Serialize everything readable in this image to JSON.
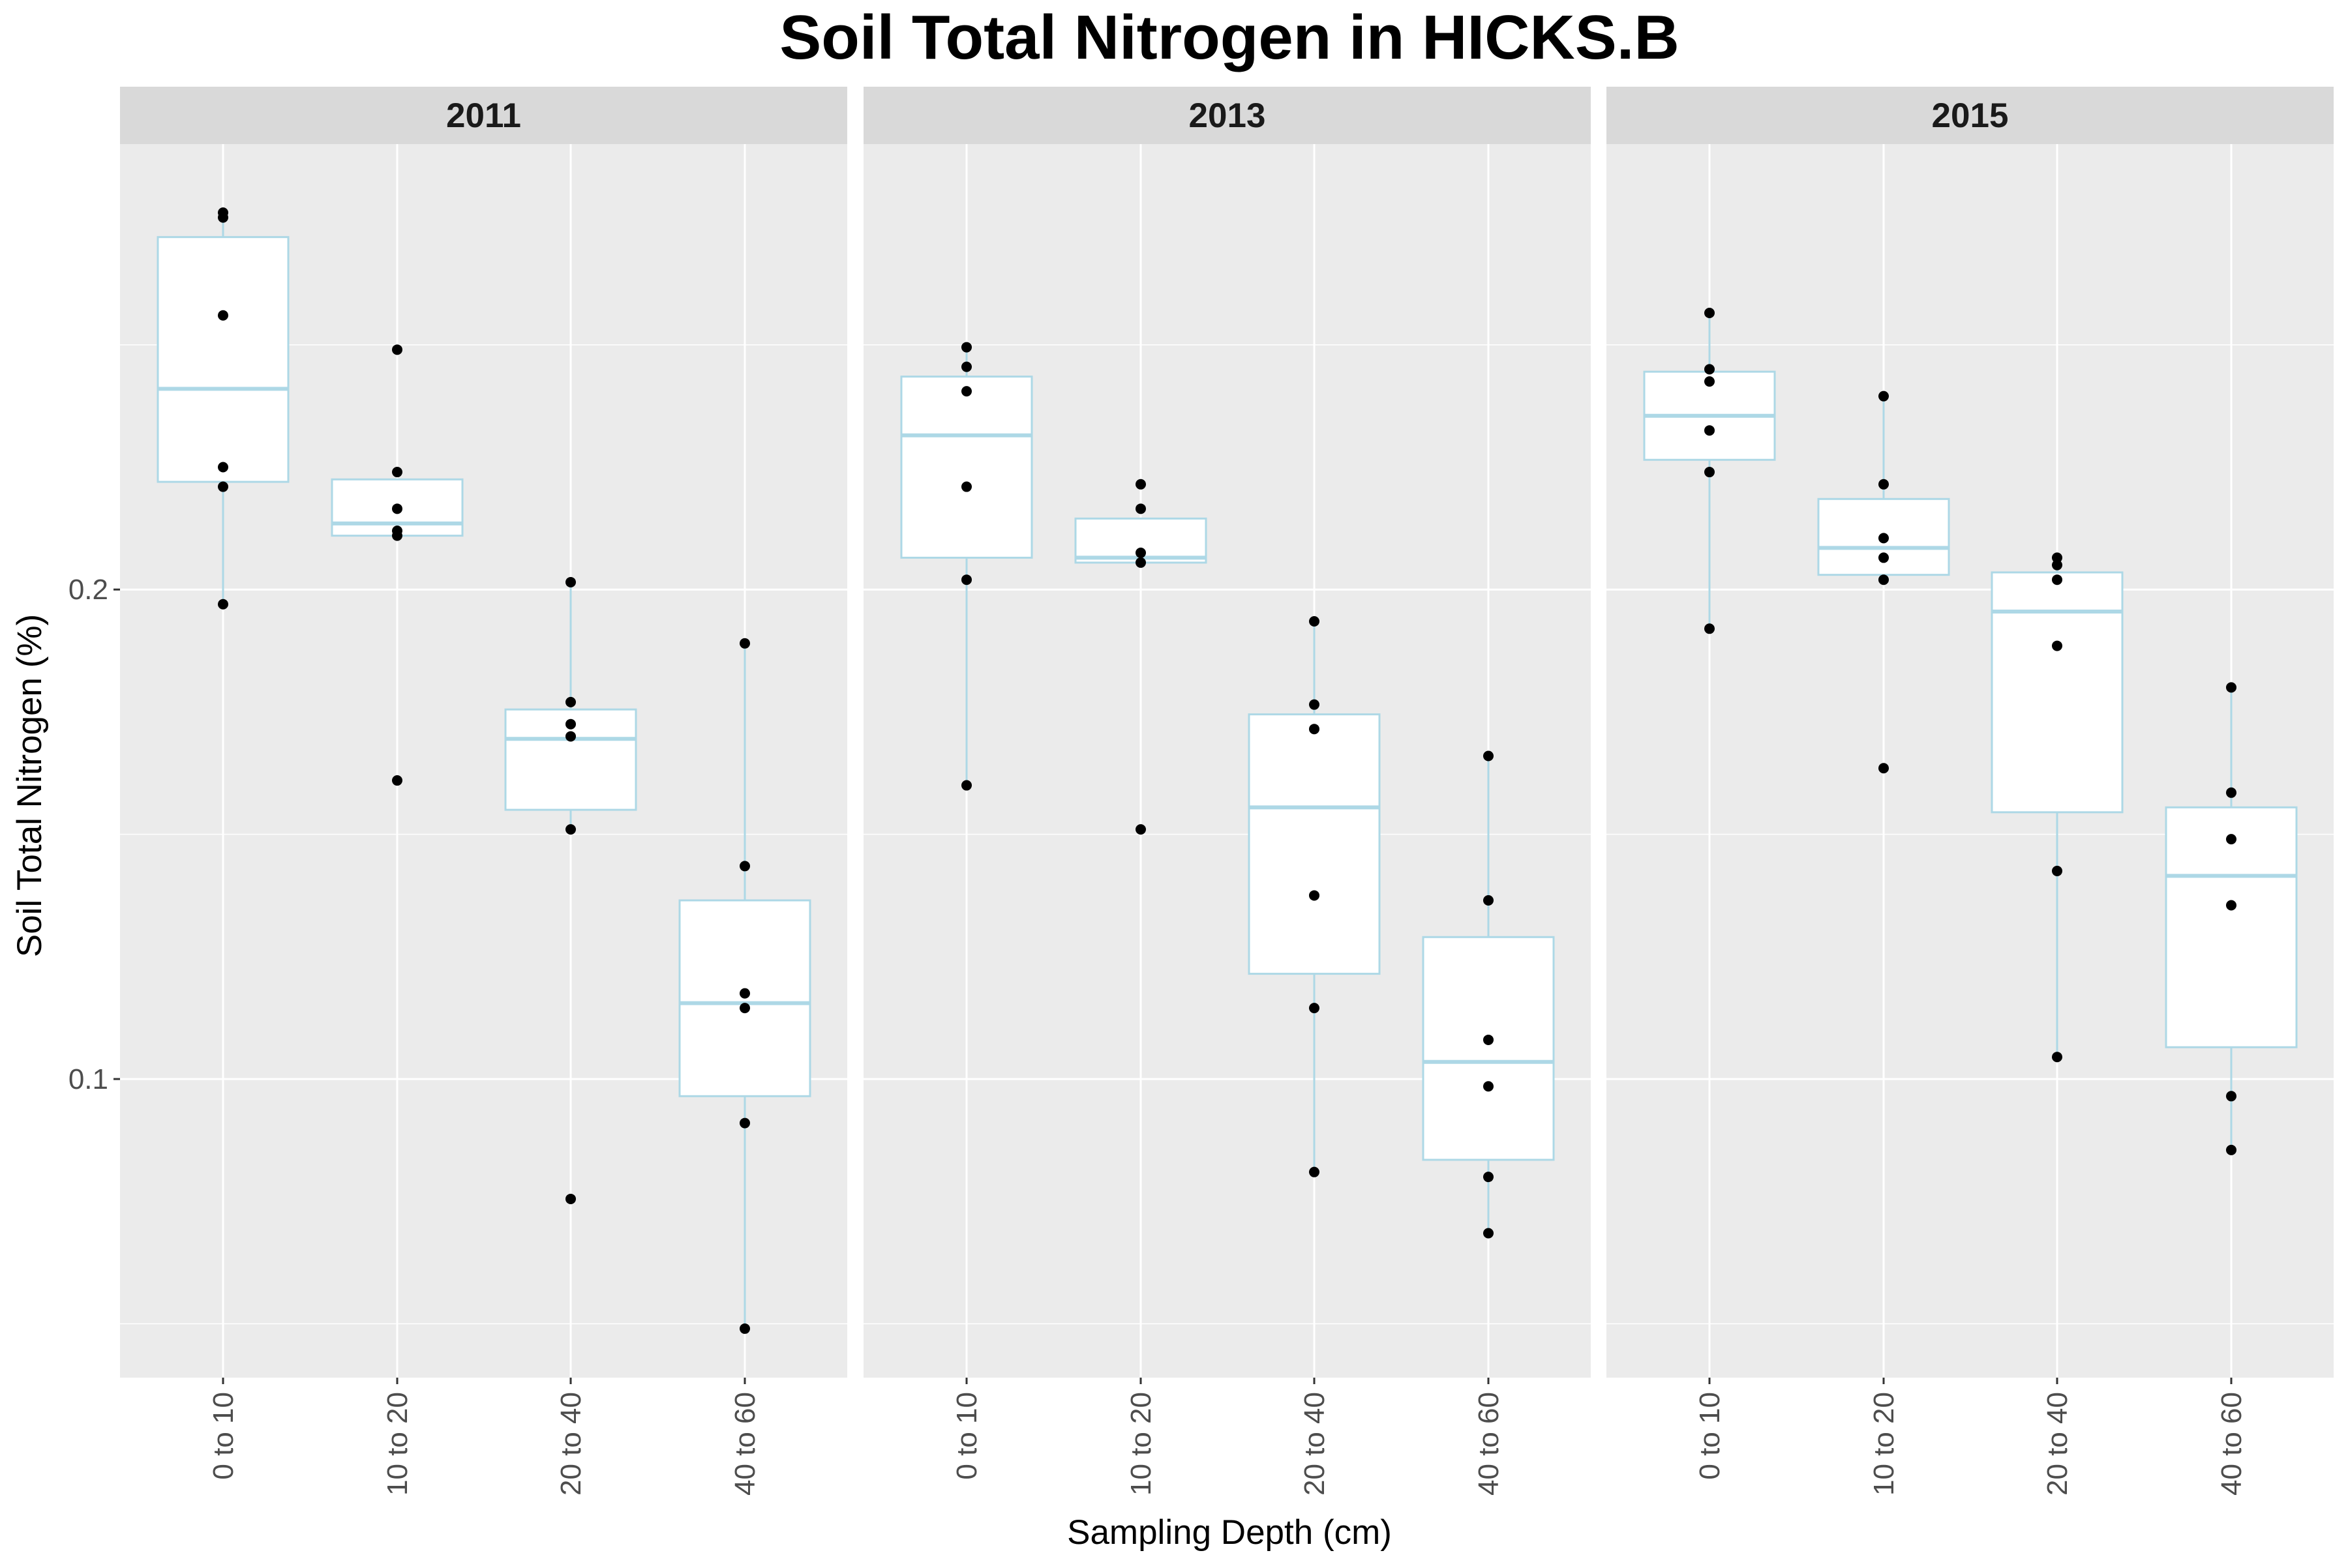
{
  "title": "Soil Total Nitrogen in HICKS.B",
  "colors": {
    "panel_background": "#ebebeb",
    "strip_background": "#d9d9d9",
    "grid": "#ffffff",
    "box_outline": "#add8e6",
    "box_fill": "#ffffff",
    "point": "#000000"
  },
  "chart_data": {
    "type": "box",
    "title": "Soil Total Nitrogen in HICKS.B",
    "xlabel": "Sampling Depth (cm)",
    "ylabel": "Soil Total Nitrogen (%)",
    "categories": [
      "0 to 10",
      "10 to 20",
      "20 to 40",
      "40 to 60"
    ],
    "y_ticks": [
      0.1,
      0.2
    ],
    "y_tick_labels": [
      "0.1",
      "0.2"
    ],
    "ylim": [
      0.039,
      0.291
    ],
    "grid": true,
    "legend": "none",
    "panels": [
      {
        "label": "2011",
        "boxes": [
          {
            "category": "0 to 10",
            "whisker_low": 0.197,
            "q1": 0.222,
            "median": 0.241,
            "q3": 0.272,
            "whisker_high": 0.277,
            "points": [
              0.277,
              0.276,
              0.256,
              0.225,
              0.221,
              0.197
            ]
          },
          {
            "category": "10 to 20",
            "whisker_low": 0.211,
            "q1": 0.211,
            "median": 0.2135,
            "q3": 0.2225,
            "whisker_high": 0.2225,
            "points": [
              0.249,
              0.224,
              0.2165,
              0.212,
              0.211,
              0.161
            ]
          },
          {
            "category": "20 to 40",
            "whisker_low": 0.151,
            "q1": 0.155,
            "median": 0.1695,
            "q3": 0.1755,
            "whisker_high": 0.2015,
            "points": [
              0.2015,
              0.177,
              0.1725,
              0.17,
              0.151,
              0.0755
            ]
          },
          {
            "category": "40 to 60",
            "whisker_low": 0.049,
            "q1": 0.0965,
            "median": 0.1155,
            "q3": 0.1365,
            "whisker_high": 0.189,
            "points": [
              0.189,
              0.1435,
              0.1175,
              0.1145,
              0.091,
              0.049
            ]
          }
        ]
      },
      {
        "label": "2013",
        "boxes": [
          {
            "category": "0 to 10",
            "whisker_low": 0.16,
            "q1": 0.2065,
            "median": 0.2315,
            "q3": 0.2435,
            "whisker_high": 0.2495,
            "points": [
              0.2495,
              0.2455,
              0.2405,
              0.221,
              0.202,
              0.16
            ]
          },
          {
            "category": "10 to 20",
            "whisker_low": 0.2055,
            "q1": 0.2055,
            "median": 0.2065,
            "q3": 0.2145,
            "whisker_high": 0.2145,
            "points": [
              0.2215,
              0.2165,
              0.2075,
              0.2055,
              0.151
            ]
          },
          {
            "category": "20 to 40",
            "whisker_low": 0.081,
            "q1": 0.1215,
            "median": 0.1555,
            "q3": 0.1745,
            "whisker_high": 0.1935,
            "points": [
              0.1935,
              0.1765,
              0.1715,
              0.1375,
              0.1145,
              0.081
            ]
          },
          {
            "category": "40 to 60",
            "whisker_low": 0.0685,
            "q1": 0.0835,
            "median": 0.1035,
            "q3": 0.129,
            "whisker_high": 0.166,
            "points": [
              0.166,
              0.1365,
              0.108,
              0.0985,
              0.08,
              0.0685
            ]
          }
        ]
      },
      {
        "label": "2015",
        "boxes": [
          {
            "category": "0 to 10",
            "whisker_low": 0.192,
            "q1": 0.2265,
            "median": 0.2355,
            "q3": 0.2445,
            "whisker_high": 0.2565,
            "points": [
              0.2565,
              0.245,
              0.2425,
              0.2325,
              0.224,
              0.192
            ]
          },
          {
            "category": "10 to 20",
            "whisker_low": 0.202,
            "q1": 0.203,
            "median": 0.2085,
            "q3": 0.2185,
            "whisker_high": 0.2395,
            "points": [
              0.2395,
              0.2215,
              0.2105,
              0.2065,
              0.202,
              0.1635
            ]
          },
          {
            "category": "20 to 40",
            "whisker_low": 0.1045,
            "q1": 0.1545,
            "median": 0.1955,
            "q3": 0.2035,
            "whisker_high": 0.2065,
            "points": [
              0.2065,
              0.205,
              0.202,
              0.1885,
              0.1425,
              0.1045
            ]
          },
          {
            "category": "40 to 60",
            "whisker_low": 0.0855,
            "q1": 0.1065,
            "median": 0.1415,
            "q3": 0.1555,
            "whisker_high": 0.18,
            "points": [
              0.18,
              0.1585,
              0.149,
              0.1355,
              0.0965,
              0.0855
            ]
          }
        ]
      }
    ]
  }
}
